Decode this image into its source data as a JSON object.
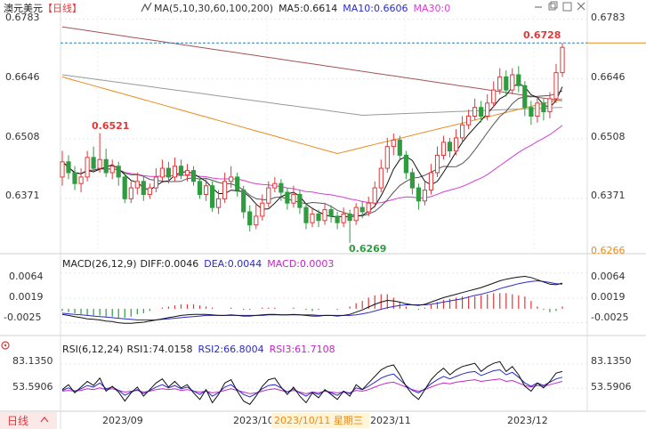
{
  "header": {
    "symbol": "澳元美元",
    "period": "【日线】",
    "ma_label": "MA(5,10,30,60,100,200)",
    "ma5_label": "MA5:0.6614",
    "ma10_label": "MA10:0.6606",
    "ma30_label": "MA30:0"
  },
  "icons": [
    "minus-icon",
    "restore-icon",
    "maximize-icon",
    "close-icon",
    "chevron-up-icon",
    "chevron-down-icon",
    "expand-icon",
    "settings-icon"
  ],
  "macd_header": {
    "name": "MACD(26,12,9)",
    "diff": "DIFF:0.0046",
    "dea": "DEA:0.0044",
    "macd": "MACD:0.0003"
  },
  "rsi_header": {
    "name": "RSI(6,12,24)",
    "rsi1": "RSI1:74.0158",
    "rsi2": "RSI2:66.8004",
    "rsi3": "RSI3:61.7108"
  },
  "footer": {
    "period_button": "日线",
    "dates": [
      "2023/09",
      "2023/10",
      "2023/11",
      "2023/12"
    ],
    "cursor_label": "2023/10/11 星期三"
  },
  "colors": {
    "up": "#e0393b",
    "down": "#2e9c3f",
    "ma5": "#111111",
    "ma10": "#555555",
    "ma30": "#d63fd3",
    "ma60": "#e98b1e",
    "ma100": "#999999",
    "ma200": "#a25555",
    "diff": "#111111",
    "dea": "#2a2acd",
    "macd": "#c326c3",
    "rsi1": "#111111",
    "rsi2": "#2a2acd",
    "rsi3": "#c326c3",
    "current_line": "#2a7fb8"
  },
  "chart_data": [
    {
      "panel": "price",
      "type": "candlestick",
      "y_ticks": [
        "0.6783",
        "0.6646",
        "0.6508",
        "0.6371"
      ],
      "ylim": [
        0.625,
        0.679
      ],
      "current_price_label": "0.6728",
      "low_label_right": "0.6266",
      "annotations": {
        "high": "0.6728",
        "low": "0.6269",
        "left_high": "0.6521"
      },
      "candles": [
        [
          0.642,
          0.6455,
          0.648,
          0.64
        ],
        [
          0.6455,
          0.643,
          0.647,
          0.6415
        ],
        [
          0.643,
          0.6405,
          0.6445,
          0.639
        ],
        [
          0.6405,
          0.642,
          0.644,
          0.6385
        ],
        [
          0.642,
          0.6465,
          0.648,
          0.641
        ],
        [
          0.6465,
          0.644,
          0.649,
          0.643
        ],
        [
          0.644,
          0.646,
          0.6521,
          0.643
        ],
        [
          0.646,
          0.643,
          0.6485,
          0.642
        ],
        [
          0.643,
          0.6445,
          0.646,
          0.6415
        ],
        [
          0.6445,
          0.642,
          0.6455,
          0.64
        ],
        [
          0.642,
          0.637,
          0.643,
          0.636
        ],
        [
          0.637,
          0.6395,
          0.641,
          0.636
        ],
        [
          0.6395,
          0.641,
          0.643,
          0.638
        ],
        [
          0.641,
          0.638,
          0.642,
          0.6365
        ],
        [
          0.638,
          0.6395,
          0.6405,
          0.637
        ],
        [
          0.6395,
          0.642,
          0.644,
          0.6385
        ],
        [
          0.642,
          0.644,
          0.646,
          0.641
        ],
        [
          0.644,
          0.642,
          0.6455,
          0.6405
        ],
        [
          0.642,
          0.6445,
          0.6465,
          0.641
        ],
        [
          0.6445,
          0.6425,
          0.646,
          0.6415
        ],
        [
          0.6425,
          0.6435,
          0.645,
          0.641
        ],
        [
          0.6435,
          0.641,
          0.6445,
          0.64
        ],
        [
          0.641,
          0.638,
          0.642,
          0.637
        ],
        [
          0.638,
          0.64,
          0.6415,
          0.6365
        ],
        [
          0.64,
          0.635,
          0.641,
          0.634
        ],
        [
          0.635,
          0.637,
          0.639,
          0.6335
        ],
        [
          0.637,
          0.641,
          0.643,
          0.636
        ],
        [
          0.641,
          0.642,
          0.6445,
          0.6395
        ],
        [
          0.642,
          0.639,
          0.643,
          0.6375
        ],
        [
          0.639,
          0.634,
          0.64,
          0.6325
        ],
        [
          0.634,
          0.631,
          0.6355,
          0.6295
        ],
        [
          0.631,
          0.633,
          0.636,
          0.63
        ],
        [
          0.633,
          0.636,
          0.638,
          0.632
        ],
        [
          0.636,
          0.6395,
          0.641,
          0.635
        ],
        [
          0.6395,
          0.6405,
          0.642,
          0.6385
        ],
        [
          0.6405,
          0.6385,
          0.6415,
          0.6365
        ],
        [
          0.6385,
          0.636,
          0.6395,
          0.6345
        ],
        [
          0.636,
          0.638,
          0.64,
          0.635
        ],
        [
          0.638,
          0.635,
          0.639,
          0.6335
        ],
        [
          0.635,
          0.6315,
          0.636,
          0.63
        ],
        [
          0.6315,
          0.6335,
          0.635,
          0.6305
        ],
        [
          0.6335,
          0.632,
          0.6345,
          0.6305
        ],
        [
          0.632,
          0.6345,
          0.636,
          0.631
        ],
        [
          0.6345,
          0.633,
          0.6355,
          0.6315
        ],
        [
          0.633,
          0.6315,
          0.634,
          0.63
        ],
        [
          0.6315,
          0.6335,
          0.635,
          0.6305
        ],
        [
          0.6335,
          0.632,
          0.6345,
          0.6269
        ],
        [
          0.632,
          0.635,
          0.636,
          0.631
        ],
        [
          0.635,
          0.634,
          0.6365,
          0.6325
        ],
        [
          0.634,
          0.636,
          0.6375,
          0.633
        ],
        [
          0.636,
          0.6395,
          0.641,
          0.635
        ],
        [
          0.6395,
          0.644,
          0.646,
          0.6385
        ],
        [
          0.644,
          0.649,
          0.651,
          0.643
        ],
        [
          0.649,
          0.6505,
          0.652,
          0.647
        ],
        [
          0.6505,
          0.647,
          0.6515,
          0.646
        ],
        [
          0.647,
          0.643,
          0.648,
          0.6415
        ],
        [
          0.643,
          0.6395,
          0.644,
          0.638
        ],
        [
          0.6395,
          0.6365,
          0.6405,
          0.6345
        ],
        [
          0.6365,
          0.639,
          0.641,
          0.6355
        ],
        [
          0.639,
          0.643,
          0.645,
          0.638
        ],
        [
          0.643,
          0.647,
          0.649,
          0.642
        ],
        [
          0.647,
          0.65,
          0.6515,
          0.646
        ],
        [
          0.65,
          0.648,
          0.651,
          0.6465
        ],
        [
          0.648,
          0.651,
          0.653,
          0.647
        ],
        [
          0.651,
          0.654,
          0.656,
          0.65
        ],
        [
          0.654,
          0.656,
          0.6575,
          0.653
        ],
        [
          0.656,
          0.658,
          0.66,
          0.655
        ],
        [
          0.658,
          0.656,
          0.6595,
          0.6545
        ],
        [
          0.656,
          0.659,
          0.661,
          0.655
        ],
        [
          0.659,
          0.662,
          0.664,
          0.658
        ],
        [
          0.662,
          0.665,
          0.667,
          0.661
        ],
        [
          0.665,
          0.662,
          0.6665,
          0.6605
        ],
        [
          0.662,
          0.6655,
          0.667,
          0.661
        ],
        [
          0.6655,
          0.663,
          0.6675,
          0.6615
        ],
        [
          0.663,
          0.658,
          0.664,
          0.656
        ],
        [
          0.658,
          0.656,
          0.6595,
          0.654
        ],
        [
          0.656,
          0.659,
          0.6605,
          0.6545
        ],
        [
          0.659,
          0.657,
          0.66,
          0.655
        ],
        [
          0.657,
          0.66,
          0.6615,
          0.6555
        ],
        [
          0.66,
          0.666,
          0.668,
          0.659
        ],
        [
          0.666,
          0.6718,
          0.6728,
          0.665
        ]
      ]
    },
    {
      "panel": "macd",
      "type": "line+bar",
      "y_ticks": [
        "0.0064",
        "0.0019",
        "-0.0025"
      ],
      "ylim": [
        -0.004,
        0.007
      ],
      "diff": [
        -0.001,
        -0.0012,
        -0.0014,
        -0.0016,
        -0.0018,
        -0.0019,
        -0.002,
        -0.0022,
        -0.0023,
        -0.0025,
        -0.0026,
        -0.0026,
        -0.0025,
        -0.0024,
        -0.0022,
        -0.002,
        -0.0018,
        -0.0016,
        -0.0014,
        -0.0012,
        -0.0011,
        -0.001,
        -0.001,
        -0.001,
        -0.0011,
        -0.0012,
        -0.0012,
        -0.0011,
        -0.0012,
        -0.0013,
        -0.0013,
        -0.0012,
        -0.0011,
        -0.001,
        -0.001,
        -0.0011,
        -0.0011,
        -0.001,
        -0.0011,
        -0.0012,
        -0.0013,
        -0.0013,
        -0.0012,
        -0.0012,
        -0.0013,
        -0.0012,
        -0.001,
        -0.0006,
        -0.0002,
        0.0003,
        0.0008,
        0.0012,
        0.0015,
        0.0014,
        0.0012,
        0.0009,
        0.0007,
        0.0006,
        0.0008,
        0.0012,
        0.0016,
        0.002,
        0.0023,
        0.0026,
        0.0029,
        0.0032,
        0.0035,
        0.0038,
        0.0042,
        0.0046,
        0.005,
        0.0053,
        0.0055,
        0.0057,
        0.0058,
        0.0056,
        0.0052,
        0.0048,
        0.0044,
        0.0043,
        0.0046
      ],
      "dea": [
        -0.0008,
        -0.0009,
        -0.001,
        -0.0011,
        -0.0012,
        -0.0013,
        -0.0014,
        -0.0015,
        -0.0016,
        -0.0017,
        -0.0018,
        -0.0019,
        -0.002,
        -0.002,
        -0.002,
        -0.002,
        -0.0019,
        -0.0018,
        -0.0017,
        -0.0016,
        -0.0015,
        -0.0014,
        -0.0013,
        -0.0012,
        -0.0012,
        -0.0012,
        -0.0012,
        -0.0012,
        -0.0012,
        -0.0012,
        -0.0012,
        -0.0012,
        -0.0012,
        -0.0011,
        -0.0011,
        -0.0011,
        -0.0011,
        -0.0011,
        -0.0011,
        -0.0011,
        -0.0011,
        -0.0012,
        -0.0012,
        -0.0012,
        -0.0012,
        -0.0012,
        -0.0012,
        -0.0011,
        -0.0009,
        -0.0007,
        -0.0004,
        -0.0001,
        0.0002,
        0.0004,
        0.0006,
        0.0007,
        0.0007,
        0.0007,
        0.0007,
        0.0008,
        0.001,
        0.0012,
        0.0014,
        0.0016,
        0.0018,
        0.0021,
        0.0024,
        0.0026,
        0.0029,
        0.0032,
        0.0036,
        0.0039,
        0.0042,
        0.0045,
        0.0047,
        0.0049,
        0.005,
        0.0049,
        0.0047,
        0.0045,
        0.0044
      ]
    },
    {
      "panel": "rsi",
      "type": "line",
      "y_ticks": [
        "83.1350",
        "53.5906"
      ],
      "ylim": [
        30,
        95
      ],
      "rsi1": [
        52,
        58,
        48,
        55,
        62,
        57,
        66,
        50,
        56,
        49,
        38,
        48,
        55,
        44,
        52,
        60,
        65,
        55,
        62,
        54,
        58,
        48,
        40,
        52,
        36,
        46,
        60,
        64,
        50,
        38,
        34,
        44,
        56,
        64,
        66,
        55,
        46,
        55,
        44,
        36,
        48,
        42,
        52,
        46,
        40,
        50,
        44,
        58,
        52,
        60,
        68,
        76,
        80,
        82,
        70,
        56,
        46,
        40,
        52,
        64,
        72,
        78,
        70,
        76,
        80,
        82,
        84,
        74,
        80,
        84,
        86,
        74,
        80,
        70,
        56,
        50,
        60,
        54,
        62,
        72,
        74
      ],
      "rsi2": [
        51,
        54,
        50,
        53,
        57,
        55,
        60,
        53,
        55,
        51,
        45,
        49,
        52,
        47,
        51,
        55,
        58,
        54,
        57,
        53,
        55,
        50,
        46,
        51,
        44,
        48,
        55,
        58,
        52,
        46,
        43,
        47,
        53,
        57,
        58,
        54,
        49,
        53,
        48,
        44,
        49,
        46,
        51,
        48,
        45,
        50,
        47,
        54,
        52,
        56,
        61,
        66,
        69,
        71,
        64,
        57,
        51,
        48,
        53,
        59,
        64,
        68,
        65,
        68,
        71,
        73,
        74,
        69,
        72,
        75,
        76,
        70,
        73,
        67,
        60,
        56,
        60,
        57,
        61,
        65,
        67
      ],
      "rsi3": [
        50,
        51,
        50,
        51,
        53,
        52,
        54,
        52,
        53,
        51,
        49,
        50,
        51,
        49,
        50,
        52,
        53,
        52,
        53,
        51,
        52,
        50,
        49,
        50,
        48,
        49,
        51,
        53,
        51,
        49,
        47,
        48,
        50,
        52,
        53,
        51,
        49,
        51,
        49,
        47,
        49,
        48,
        50,
        49,
        48,
        49,
        48,
        51,
        50,
        52,
        55,
        58,
        60,
        61,
        58,
        55,
        52,
        50,
        52,
        55,
        58,
        60,
        59,
        61,
        62,
        63,
        64,
        62,
        63,
        64,
        65,
        62,
        63,
        60,
        57,
        55,
        57,
        56,
        58,
        60,
        62
      ]
    }
  ]
}
